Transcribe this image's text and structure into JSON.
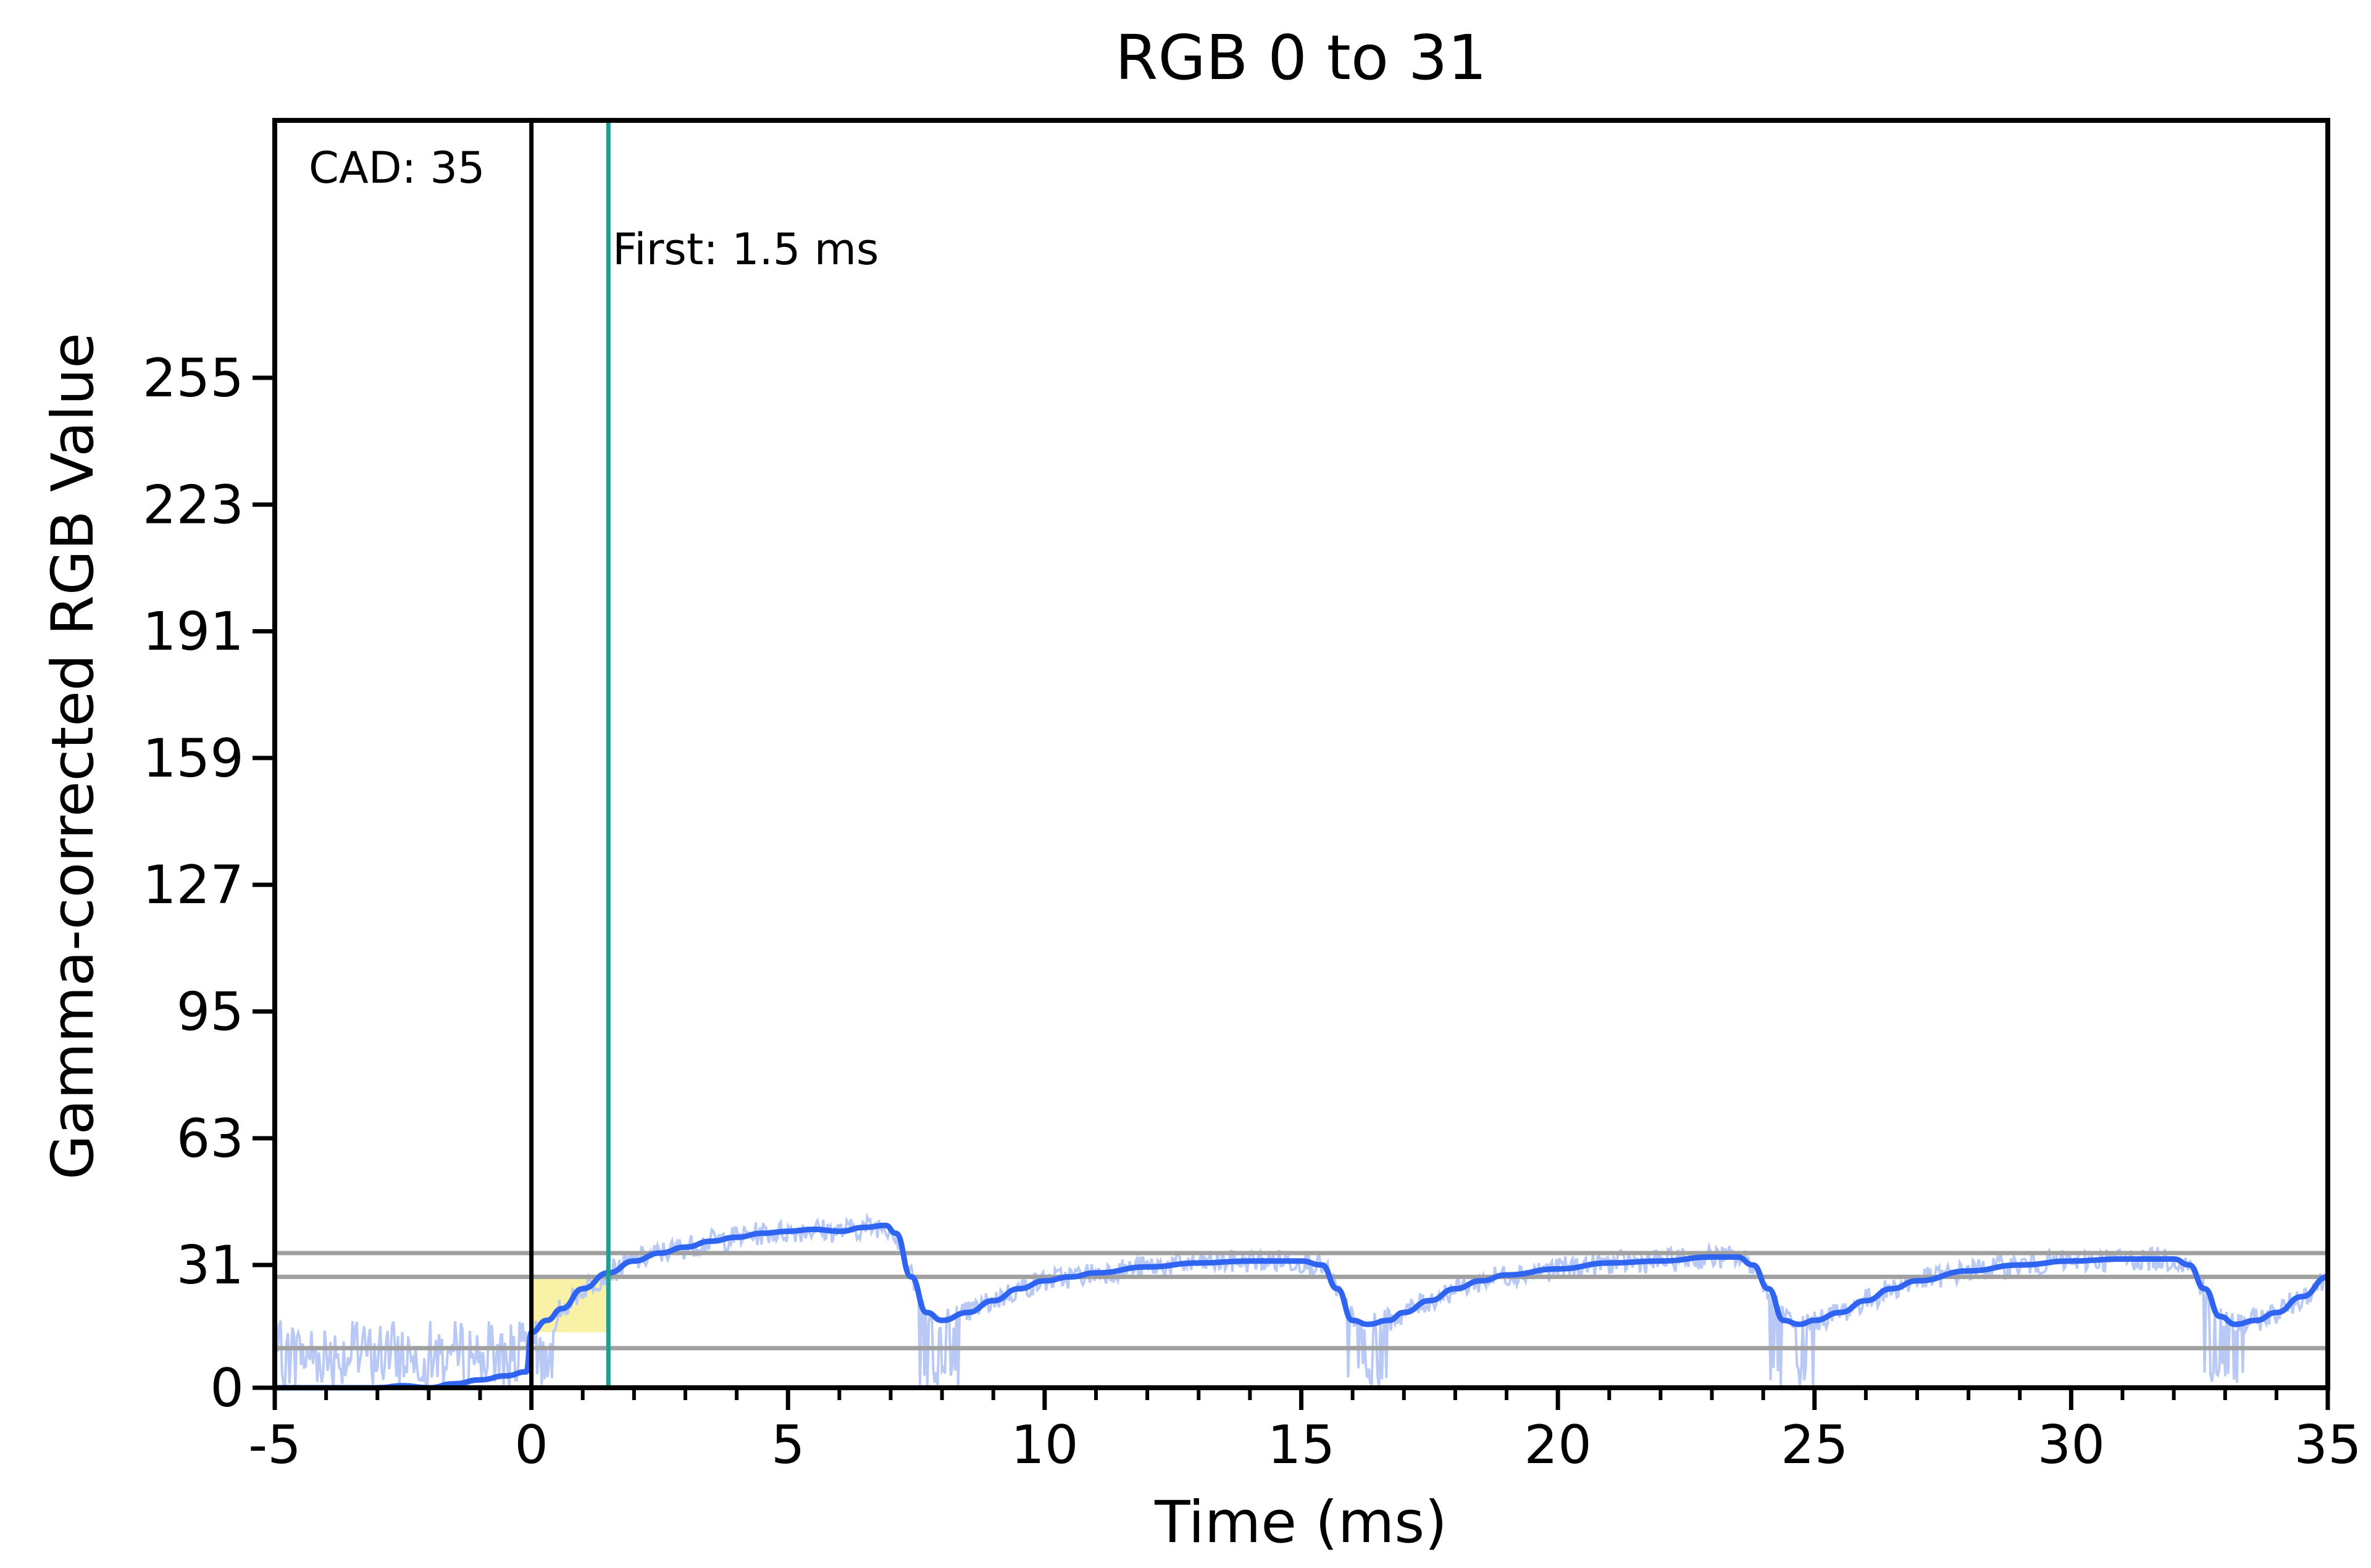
{
  "chart_data": {
    "type": "line",
    "title": "RGB 0 to 31",
    "xlabel": "Time (ms)",
    "ylabel": "Gamma-corrected RGB Value",
    "xlim": [
      -5,
      35
    ],
    "ylim": [
      0,
      320
    ],
    "x_ticks": [
      {
        "value": -5,
        "label": "-5"
      },
      {
        "value": 0,
        "label": "0"
      },
      {
        "value": 5,
        "label": "5"
      },
      {
        "value": 10,
        "label": "10"
      },
      {
        "value": 15,
        "label": "15"
      },
      {
        "value": 20,
        "label": "20"
      },
      {
        "value": 25,
        "label": "25"
      },
      {
        "value": 30,
        "label": "30"
      },
      {
        "value": 35,
        "label": "35"
      }
    ],
    "y_ticks": [
      {
        "value": 0,
        "label": "0"
      },
      {
        "value": 31,
        "label": "31"
      },
      {
        "value": 63,
        "label": "63"
      },
      {
        "value": 95,
        "label": "95"
      },
      {
        "value": 127,
        "label": "127"
      },
      {
        "value": 159,
        "label": "159"
      },
      {
        "value": 191,
        "label": "191"
      },
      {
        "value": 223,
        "label": "223"
      },
      {
        "value": 255,
        "label": "255"
      }
    ],
    "x_minor_tick_step": 1,
    "grid": false,
    "reference_lines": {
      "horizontal": [
        34,
        28,
        10
      ],
      "start_vertical": 0,
      "first_vertical": 1.5
    },
    "annotations": {
      "cad": "CAD: 35",
      "first": "First: 1.5 ms"
    },
    "highlight_region": {
      "x_start": 0,
      "x_end": 1.5,
      "y_low": 14,
      "y_high": 28
    },
    "colors": {
      "smoothed_line": "#2f64f0",
      "raw_signal": "#b9c9f5",
      "reference_lines": "#a0a0a0",
      "first_line": "#1f9e96",
      "start_line": "#000000",
      "highlight": "#f9f2a6"
    },
    "series": [
      {
        "style": "smoothed",
        "x": [
          -5,
          -4,
          -3,
          -2.5,
          -2,
          -1.5,
          -1,
          -0.5,
          -0.1,
          0,
          0.3,
          0.6,
          1,
          1.5,
          2,
          2.5,
          3,
          3.5,
          4,
          4.5,
          5,
          5.5,
          6,
          6.5,
          6.9,
          7.1,
          7.4,
          7.7,
          8,
          8.5,
          9,
          9.5,
          10,
          10.5,
          11,
          12,
          13,
          14,
          15,
          15.4,
          15.7,
          16,
          16.3,
          16.7,
          17,
          17.5,
          18,
          18.5,
          19,
          20,
          21,
          22,
          23,
          23.5,
          23.8,
          24.1,
          24.4,
          24.7,
          25,
          25.5,
          26,
          26.5,
          27,
          28,
          29,
          30,
          31,
          32,
          32.3,
          32.6,
          32.9,
          33.2,
          33.6,
          34,
          34.5,
          35
        ],
        "y": [
          0,
          0,
          0,
          0.5,
          0,
          1,
          2,
          3,
          4,
          14,
          17,
          20,
          25,
          29,
          32,
          34,
          35.5,
          37,
          38,
          39,
          39.5,
          40,
          39.5,
          40.5,
          41,
          39,
          28,
          19,
          17,
          19,
          22,
          25,
          27,
          28,
          29,
          30.5,
          31.5,
          32,
          32,
          31,
          25,
          17,
          16,
          17,
          19,
          22,
          25,
          27,
          28.5,
          30,
          31.5,
          32,
          33,
          33,
          31,
          25,
          17,
          16,
          17,
          19,
          22,
          25,
          27,
          29.5,
          31,
          32,
          32.5,
          32.5,
          31,
          25,
          18,
          16,
          17,
          19,
          23,
          28
        ]
      },
      {
        "style": "raw",
        "dropout_windows": [
          [
            7.5,
            8.4
          ],
          [
            15.8,
            16.7
          ],
          [
            24.1,
            25.0
          ],
          [
            32.5,
            33.4
          ]
        ],
        "early_band": {
          "x_start": -5,
          "x_end": 0.5,
          "y_low": 0,
          "y_high": 17
        },
        "noise_amplitude": 3
      }
    ]
  }
}
